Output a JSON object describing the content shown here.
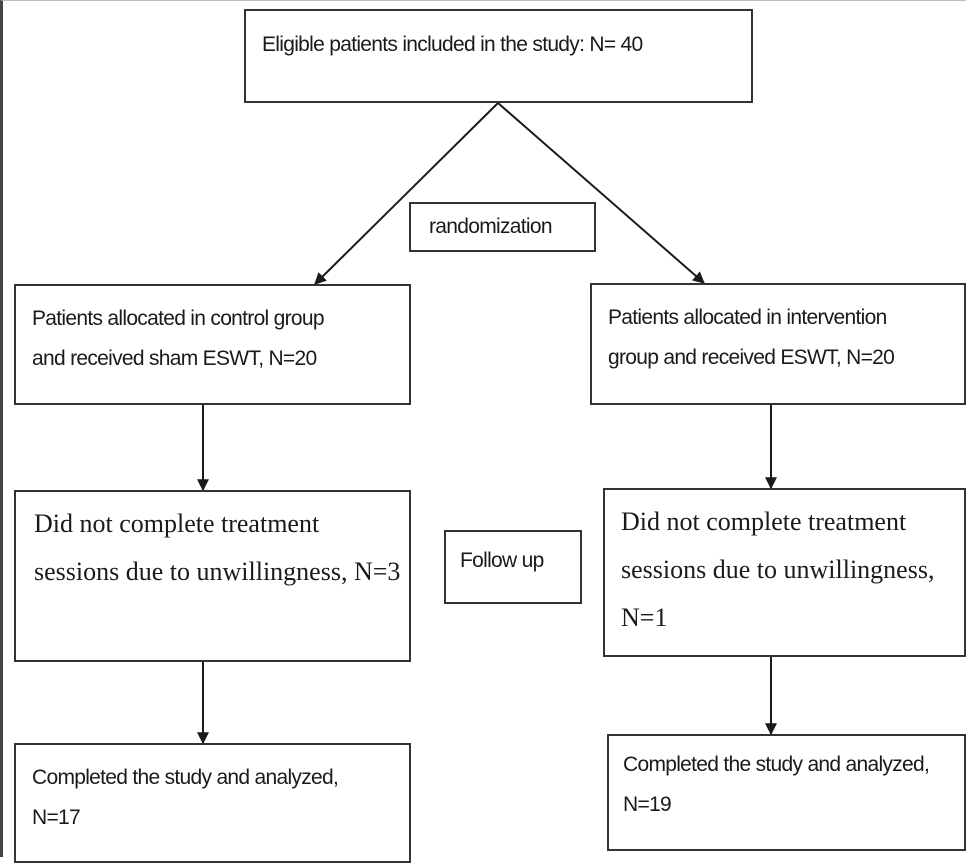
{
  "flowchart": {
    "eligible": "Eligible patients included in the study: N= 40",
    "randomization": "randomization",
    "control_group": {
      "line1": "Patients allocated in control group",
      "line2": "and received sham ESWT, N=20"
    },
    "intervention_group": {
      "line1": "Patients allocated in intervention",
      "line2": "group and received ESWT, N=20"
    },
    "follow_up": "Follow up",
    "control_dropout": {
      "line1": "Did not complete treatment",
      "line2": "sessions due to unwillingness, N=3"
    },
    "intervention_dropout": {
      "line1": "Did not complete treatment",
      "line2": "sessions due to unwillingness,",
      "line3": "N=1"
    },
    "control_completed": {
      "line1": "Completed the study and analyzed,",
      "line2": "N=17"
    },
    "intervention_completed": {
      "line1": "Completed the study and analyzed,",
      "line2": "N=19"
    }
  },
  "colors": {
    "line": "#1a1a1a",
    "border": "#333333",
    "background": "#ffffff"
  }
}
